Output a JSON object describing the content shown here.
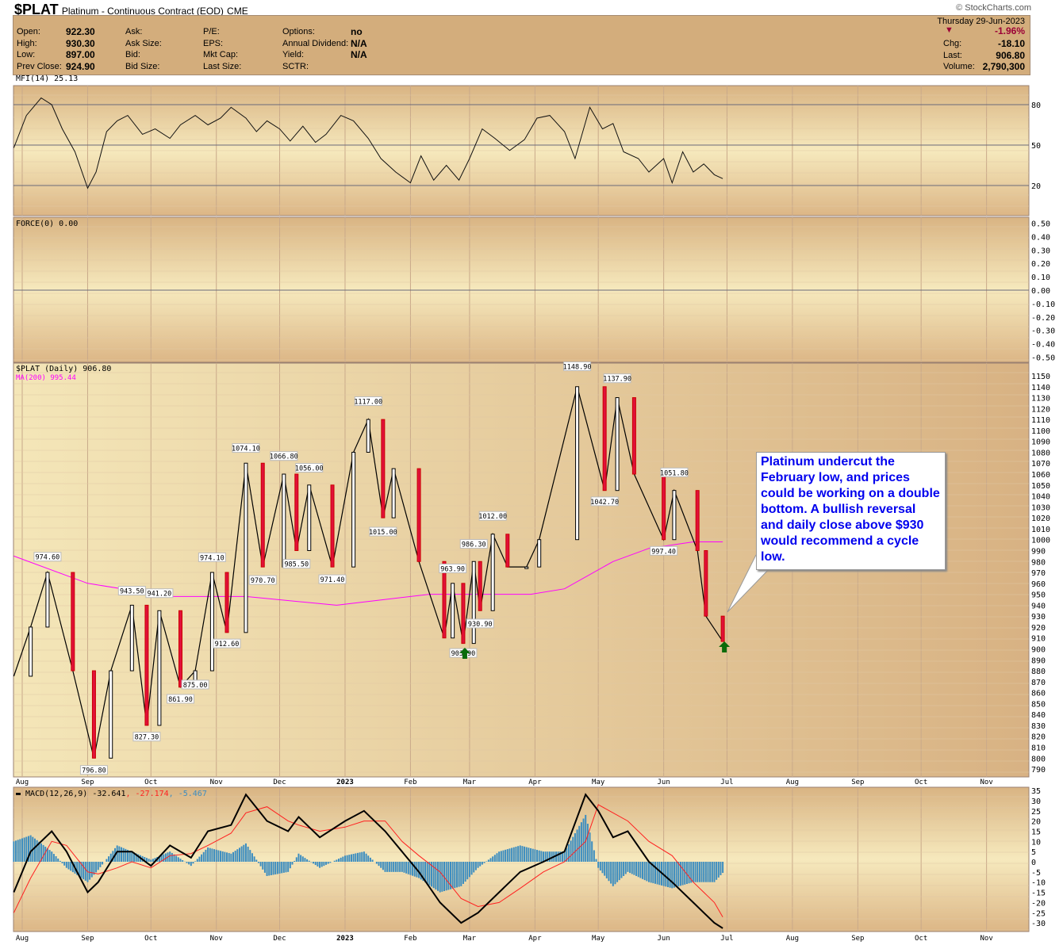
{
  "header": {
    "symbol": "$PLAT",
    "name": "Platinum - Continuous Contract (EOD)",
    "exchange": "CME",
    "brand": "© StockCharts.com"
  },
  "quote": {
    "left": [
      [
        "Open:",
        "922.30"
      ],
      [
        "High:",
        "930.30"
      ],
      [
        "Low:",
        "897.00"
      ],
      [
        "Prev Close:",
        "924.90"
      ]
    ],
    "col2": [
      "Ask:",
      "Ask Size:",
      "Bid:",
      "Bid Size:"
    ],
    "col3": [
      "P/E:",
      "EPS:",
      "Mkt Cap:",
      "Last Size:"
    ],
    "col4": [
      [
        "Options:",
        "no"
      ],
      [
        "Annual Dividend:",
        "N/A"
      ],
      [
        "Yield:",
        "N/A"
      ],
      [
        "SCTR:",
        ""
      ]
    ],
    "date": "Thursday  29-Jun-2023",
    "pct": "-1.96%",
    "chg_label": "Chg:",
    "chg": "-18.10",
    "last_label": "Last:",
    "last": "906.80",
    "vol_label": "Volume:",
    "volume": "2,790,300",
    "down_color": "#9b0036"
  },
  "annotation": "Platinum undercut the February low, and prices could be working on a double bottom. A bullish reversal and daily close above $930 would recommend a cycle low.",
  "chart_data": [
    {
      "type": "line",
      "panel": "MFI",
      "legend": "MFI(14) 25.13",
      "ylim": [
        0,
        100
      ],
      "ticks": [
        "80",
        "50",
        "20"
      ],
      "tick_values": [
        80,
        50,
        20
      ],
      "x": [
        "2022-07-28",
        "2022-08-03",
        "2022-08-10",
        "2022-08-15",
        "2022-08-20",
        "2022-08-26",
        "2022-09-01",
        "2022-09-05",
        "2022-09-10",
        "2022-09-15",
        "2022-09-20",
        "2022-09-27",
        "2022-10-03",
        "2022-10-10",
        "2022-10-15",
        "2022-10-22",
        "2022-10-28",
        "2022-11-03",
        "2022-11-08",
        "2022-11-15",
        "2022-11-20",
        "2022-11-25",
        "2022-12-01",
        "2022-12-06",
        "2022-12-12",
        "2022-12-18",
        "2022-12-23",
        "2022-12-30",
        "2023-01-05",
        "2023-01-12",
        "2023-01-18",
        "2023-01-25",
        "2023-02-01",
        "2023-02-06",
        "2023-02-12",
        "2023-02-18",
        "2023-02-24",
        "2023-03-01",
        "2023-03-07",
        "2023-03-13",
        "2023-03-20",
        "2023-03-27",
        "2023-04-02",
        "2023-04-08",
        "2023-04-15",
        "2023-04-20",
        "2023-04-27",
        "2023-05-03",
        "2023-05-08",
        "2023-05-13",
        "2023-05-20",
        "2023-05-25",
        "2023-06-01",
        "2023-06-05",
        "2023-06-10",
        "2023-06-15",
        "2023-06-20",
        "2023-06-25",
        "2023-06-29"
      ],
      "y": [
        48,
        72,
        85,
        80,
        62,
        45,
        18,
        30,
        60,
        68,
        72,
        58,
        62,
        55,
        65,
        72,
        65,
        70,
        78,
        70,
        60,
        68,
        62,
        53,
        64,
        52,
        58,
        72,
        68,
        55,
        40,
        30,
        22,
        42,
        24,
        35,
        24,
        40,
        62,
        55,
        46,
        54,
        70,
        72,
        60,
        40,
        78,
        62,
        66,
        45,
        40,
        30,
        40,
        22,
        45,
        30,
        36,
        28,
        25.13
      ]
    },
    {
      "type": "line",
      "panel": "FORCE",
      "legend": "FORCE(0) 0.00",
      "ylim": [
        -0.5,
        0.5
      ],
      "ticks": [
        "0.50",
        "0.40",
        "0.30",
        "0.20",
        "0.10",
        "0.00",
        "-0.10",
        "-0.20",
        "-0.30",
        "-0.40",
        "-0.50"
      ]
    },
    {
      "type": "candlestick",
      "panel": "Price",
      "legend": "$PLAT (Daily) 906.80",
      "ma_legend": "MA(200) 995.44",
      "ylim": [
        785,
        1160
      ],
      "yticks": [
        790,
        800,
        810,
        820,
        830,
        840,
        850,
        860,
        870,
        880,
        890,
        900,
        910,
        920,
        930,
        940,
        950,
        960,
        970,
        980,
        990,
        1000,
        1010,
        1020,
        1030,
        1040,
        1050,
        1060,
        1070,
        1080,
        1090,
        1100,
        1110,
        1120,
        1130,
        1140,
        1150
      ],
      "x": [
        "2022-07-28",
        "2022-08-05",
        "2022-08-13",
        "2022-08-25",
        "2022-09-04",
        "2022-09-12",
        "2022-09-22",
        "2022-09-29",
        "2022-10-05",
        "2022-10-15",
        "2022-10-22",
        "2022-10-30",
        "2022-11-06",
        "2022-11-15",
        "2022-11-23",
        "2022-12-03",
        "2022-12-09",
        "2022-12-15",
        "2022-12-26",
        "2023-01-05",
        "2023-01-12",
        "2023-01-19",
        "2023-01-24",
        "2023-02-05",
        "2023-02-17",
        "2023-02-21",
        "2023-02-26",
        "2023-03-03",
        "2023-03-06",
        "2023-03-12",
        "2023-03-19",
        "2023-03-28",
        "2023-04-03",
        "2023-04-21",
        "2023-05-04",
        "2023-05-10",
        "2023-05-18",
        "2023-06-01",
        "2023-06-06",
        "2023-06-17",
        "2023-06-21",
        "2023-06-29"
      ],
      "close": [
        875,
        920,
        970,
        880,
        800,
        880,
        940,
        830,
        935,
        865,
        880,
        970,
        915,
        1070,
        975,
        1060,
        990,
        1050,
        975,
        1080,
        1110,
        1020,
        1065,
        980,
        910,
        960,
        905,
        980,
        935,
        1005,
        975,
        975,
        1000,
        1140,
        1045,
        1130,
        1060,
        1000,
        1045,
        990,
        930,
        906.8
      ],
      "ma200": {
        "x": [
          "2022-07-28",
          "2022-09-01",
          "2022-10-10",
          "2022-11-15",
          "2022-12-28",
          "2023-02-10",
          "2023-03-30",
          "2023-04-15",
          "2023-05-08",
          "2023-05-25",
          "2023-06-15",
          "2023-06-29"
        ],
        "y": [
          985,
          960,
          948,
          948,
          940,
          950,
          950,
          955,
          980,
          992,
          998,
          998
        ]
      },
      "labels": [
        [
          "2022-08-13",
          974.6,
          "974.60",
          "up"
        ],
        [
          "2022-09-04",
          796.8,
          "796.80",
          "down"
        ],
        [
          "2022-09-22",
          943.5,
          "943.50",
          "up"
        ],
        [
          "2022-09-29",
          827.3,
          "827.30",
          "down"
        ],
        [
          "2022-10-05",
          941.2,
          "941.20",
          "up"
        ],
        [
          "2022-10-15",
          861.9,
          "861.90",
          "down"
        ],
        [
          "2022-10-22",
          875.0,
          "875.00",
          "down"
        ],
        [
          "2022-10-30",
          974.1,
          "974.10",
          "up"
        ],
        [
          "2022-11-06",
          912.6,
          "912.60",
          "down"
        ],
        [
          "2022-11-15",
          1074.1,
          "1074.10",
          "up"
        ],
        [
          "2022-11-23",
          970.7,
          "970.70",
          "down"
        ],
        [
          "2022-12-03",
          1066.8,
          "1066.80",
          "up"
        ],
        [
          "2022-12-09",
          985.5,
          "985.50",
          "down"
        ],
        [
          "2022-12-15",
          1056.0,
          "1056.00",
          "up"
        ],
        [
          "2022-12-26",
          971.4,
          "971.40",
          "down"
        ],
        [
          "2023-01-12",
          1117.0,
          "1117.00",
          "up"
        ],
        [
          "2023-01-19",
          1015.0,
          "1015.00",
          "down"
        ],
        [
          "2023-02-21",
          963.9,
          "963.90",
          "up"
        ],
        [
          "2023-02-26",
          903.9,
          "903.90",
          "down"
        ],
        [
          "2023-03-03",
          986.3,
          "986.30",
          "up"
        ],
        [
          "2023-03-06",
          930.9,
          "930.90",
          "down"
        ],
        [
          "2023-03-12",
          1012.0,
          "1012.00",
          "up"
        ],
        [
          "2023-04-21",
          1148.9,
          "1148.90",
          "up"
        ],
        [
          "2023-05-04",
          1042.7,
          "1042.70",
          "down"
        ],
        [
          "2023-05-10",
          1137.9,
          "1137.90",
          "up"
        ],
        [
          "2023-06-01",
          997.4,
          "997.40",
          "down"
        ],
        [
          "2023-06-06",
          1051.8,
          "1051.80",
          "up"
        ]
      ],
      "arrows": [
        "2023-02-26",
        "2023-06-29"
      ]
    },
    {
      "type": "line",
      "panel": "MACD",
      "legend": "MACD(12,26,9)",
      "values_text": [
        "-32.641",
        ", -27.174",
        ", -5.467"
      ],
      "ylim": [
        -33,
        36
      ],
      "yticks": [
        35,
        30,
        25,
        20,
        15,
        10,
        5,
        0,
        -5,
        -10,
        -15,
        -20,
        -25,
        -30
      ],
      "x": [
        "2022-07-28",
        "2022-08-05",
        "2022-08-15",
        "2022-08-22",
        "2022-09-01",
        "2022-09-06",
        "2022-09-15",
        "2022-09-22",
        "2022-10-01",
        "2022-10-10",
        "2022-10-20",
        "2022-10-28",
        "2022-11-08",
        "2022-11-15",
        "2022-11-25",
        "2022-12-05",
        "2022-12-10",
        "2022-12-20",
        "2023-01-01",
        "2023-01-10",
        "2023-01-20",
        "2023-01-28",
        "2023-02-05",
        "2023-02-15",
        "2023-02-25",
        "2023-03-05",
        "2023-03-15",
        "2023-03-25",
        "2023-04-05",
        "2023-04-15",
        "2023-04-25",
        "2023-05-01",
        "2023-05-08",
        "2023-05-15",
        "2023-05-25",
        "2023-06-05",
        "2023-06-15",
        "2023-06-25",
        "2023-06-29"
      ],
      "macd": [
        -15,
        5,
        15,
        5,
        -15,
        -10,
        5,
        5,
        -2,
        8,
        2,
        15,
        18,
        33,
        20,
        15,
        22,
        12,
        20,
        25,
        15,
        5,
        -5,
        -20,
        -30,
        -25,
        -15,
        -5,
        0,
        5,
        33,
        25,
        12,
        15,
        0,
        -10,
        -20,
        -30,
        -32.641
      ],
      "signal": [
        -25,
        -8,
        10,
        8,
        -5,
        -6,
        -3,
        0,
        -3,
        3,
        4,
        8,
        14,
        24,
        27,
        20,
        18,
        15,
        17,
        20,
        20,
        10,
        3,
        -5,
        -18,
        -22,
        -20,
        -13,
        -5,
        0,
        10,
        28,
        24,
        20,
        10,
        3,
        -10,
        -20,
        -27.174
      ]
    },
    {
      "type": "axis",
      "months": [
        "Aug",
        "Sep",
        "Oct",
        "Nov",
        "Dec",
        "2023",
        "Feb",
        "Mar",
        "Apr",
        "May",
        "Jun",
        "Jul",
        "Aug",
        "Sep",
        "Oct",
        "Nov"
      ],
      "month_dates": [
        "2022-08-01",
        "2022-09-01",
        "2022-10-01",
        "2022-11-01",
        "2022-12-01",
        "2023-01-01",
        "2023-02-01",
        "2023-03-01",
        "2023-04-01",
        "2023-05-01",
        "2023-06-01",
        "2023-07-01",
        "2023-08-01",
        "2023-09-01",
        "2023-10-01",
        "2023-11-01"
      ]
    }
  ]
}
